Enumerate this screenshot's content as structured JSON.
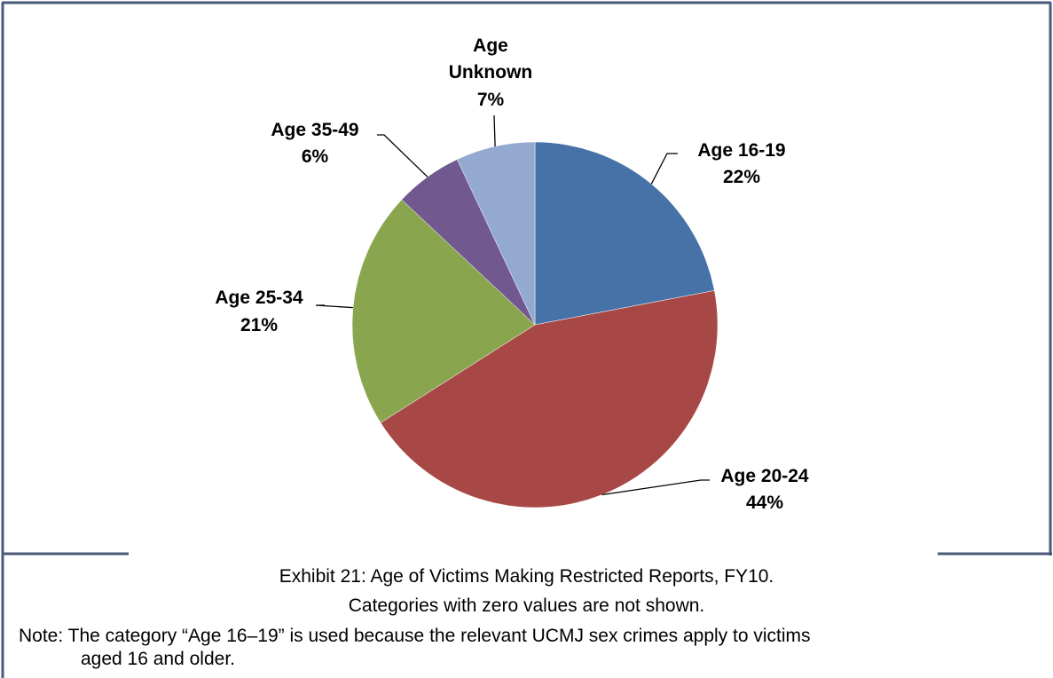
{
  "colors": {
    "border": "#4a5a7a",
    "slice_16_19": "#4672a8",
    "slice_20_24": "#a84846",
    "slice_25_34": "#89a54e",
    "slice_35_49": "#71588f",
    "slice_unknown": "#93a9cf"
  },
  "chart_data": {
    "type": "pie",
    "title": "",
    "start_angle_deg": 0,
    "direction": "clockwise",
    "slices": [
      {
        "key": "age_16_19",
        "label": "Age 16-19",
        "percent_label": "22%",
        "value": 22,
        "color": "#4672a8"
      },
      {
        "key": "age_20_24",
        "label": "Age 20-24",
        "percent_label": "44%",
        "value": 44,
        "color": "#a84846"
      },
      {
        "key": "age_25_34",
        "label": "Age 25-34",
        "percent_label": "21%",
        "value": 21,
        "color": "#89a54e"
      },
      {
        "key": "age_35_49",
        "label": "Age 35-49",
        "percent_label": "6%",
        "value": 6,
        "color": "#71588f"
      },
      {
        "key": "age_unknown",
        "label": "Age Unknown",
        "label_lines": [
          "Age",
          "Unknown"
        ],
        "percent_label": "7%",
        "value": 7,
        "color": "#93a9cf"
      }
    ]
  },
  "caption": {
    "exhibit": "Exhibit 21: Age of Victims Making Restricted Reports, FY10.",
    "subnote": "Categories with zero values are not shown.",
    "note_line1": "Note: The category “Age 16–19” is used because the relevant UCMJ sex crimes apply to victims",
    "note_line2": "aged 16 and older."
  }
}
